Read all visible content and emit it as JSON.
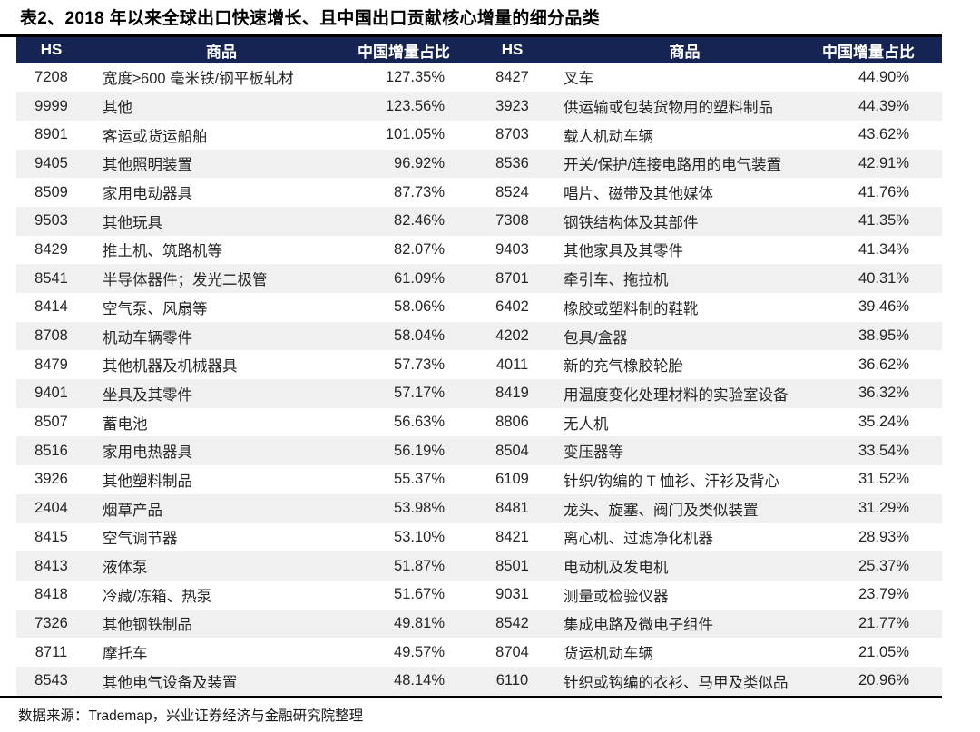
{
  "title": "表2、2018 年以来全球出口快速增长、且中国出口贡献核心增量的细分品类",
  "source_note": "数据来源：Trademap，兴业证券经济与金融研究院整理",
  "colors": {
    "header_bg": "#152452",
    "header_text": "#ffffff",
    "row_stripe": "#f0f0f0",
    "rule": "#000000",
    "body_text": "#262626"
  },
  "table": {
    "headers": {
      "hs": "HS",
      "product": "商品",
      "share": "中国增量占比"
    },
    "left_rows": [
      [
        "7208",
        "宽度≥600 毫米铁/钢平板轧材",
        "127.35%"
      ],
      [
        "9999",
        "其他",
        "123.56%"
      ],
      [
        "8901",
        "客运或货运船舶",
        "101.05%"
      ],
      [
        "9405",
        "其他照明装置",
        "96.92%"
      ],
      [
        "8509",
        "家用电动器具",
        "87.73%"
      ],
      [
        "9503",
        "其他玩具",
        "82.46%"
      ],
      [
        "8429",
        "推土机、筑路机等",
        "82.07%"
      ],
      [
        "8541",
        "半导体器件；发光二极管",
        "61.09%"
      ],
      [
        "8414",
        "空气泵、风扇等",
        "58.06%"
      ],
      [
        "8708",
        "机动车辆零件",
        "58.04%"
      ],
      [
        "8479",
        "其他机器及机械器具",
        "57.73%"
      ],
      [
        "9401",
        "坐具及其零件",
        "57.17%"
      ],
      [
        "8507",
        "蓄电池",
        "56.63%"
      ],
      [
        "8516",
        "家用电热器具",
        "56.19%"
      ],
      [
        "3926",
        "其他塑料制品",
        "55.37%"
      ],
      [
        "2404",
        "烟草产品",
        "53.98%"
      ],
      [
        "8415",
        "空气调节器",
        "53.10%"
      ],
      [
        "8413",
        "液体泵",
        "51.87%"
      ],
      [
        "8418",
        "冷藏/冻箱、热泵",
        "51.67%"
      ],
      [
        "7326",
        "其他钢铁制品",
        "49.81%"
      ],
      [
        "8711",
        "摩托车",
        "49.57%"
      ],
      [
        "8543",
        "其他电气设备及装置",
        "48.14%"
      ]
    ],
    "right_rows": [
      [
        "8427",
        "叉车",
        "44.90%"
      ],
      [
        "3923",
        "供运输或包装货物用的塑料制品",
        "44.39%"
      ],
      [
        "8703",
        "载人机动车辆",
        "43.62%"
      ],
      [
        "8536",
        "开关/保护/连接电路用的电气装置",
        "42.91%"
      ],
      [
        "8524",
        "唱片、磁带及其他媒体",
        "41.76%"
      ],
      [
        "7308",
        "钢铁结构体及其部件",
        "41.35%"
      ],
      [
        "9403",
        "其他家具及其零件",
        "41.34%"
      ],
      [
        "8701",
        "牵引车、拖拉机",
        "40.31%"
      ],
      [
        "6402",
        "橡胶或塑料制的鞋靴",
        "39.46%"
      ],
      [
        "4202",
        "包具/盒器",
        "38.95%"
      ],
      [
        "4011",
        "新的充气橡胶轮胎",
        "36.62%"
      ],
      [
        "8419",
        "用温度变化处理材料的实验室设备",
        "36.32%"
      ],
      [
        "8806",
        "无人机",
        "35.24%"
      ],
      [
        "8504",
        "变压器等",
        "33.54%"
      ],
      [
        "6109",
        "针织/钩编的 T 恤衫、汗衫及背心",
        "31.52%"
      ],
      [
        "8481",
        "龙头、旋塞、阀门及类似装置",
        "31.29%"
      ],
      [
        "8421",
        "离心机、过滤净化机器",
        "28.93%"
      ],
      [
        "8501",
        "电动机及发电机",
        "25.37%"
      ],
      [
        "9031",
        "测量或检验仪器",
        "23.79%"
      ],
      [
        "8542",
        "集成电路及微电子组件",
        "21.77%"
      ],
      [
        "8704",
        "货运机动车辆",
        "21.05%"
      ],
      [
        "6110",
        "针织或钩编的衣衫、马甲及类似品",
        "20.96%"
      ]
    ]
  }
}
